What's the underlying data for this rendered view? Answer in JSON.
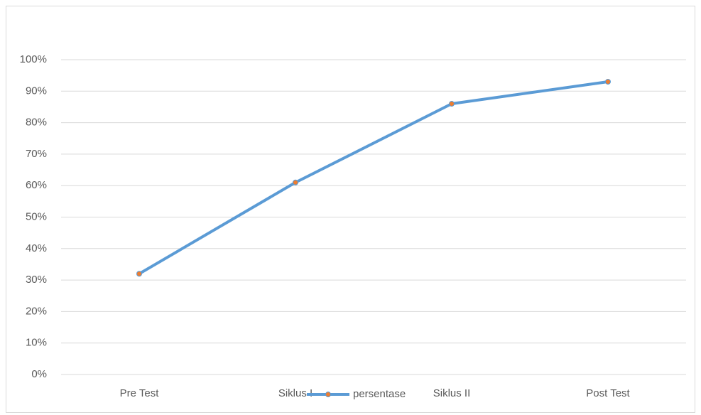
{
  "chart_data": {
    "type": "line",
    "categories": [
      "Pre Test",
      "Siklus I",
      "Siklus II",
      "Post Test"
    ],
    "series": [
      {
        "name": "persentase",
        "color": "#5b9bd5",
        "marker_color": "#ed7d31",
        "values": [
          32,
          61,
          86,
          93
        ]
      }
    ],
    "ylim": [
      0,
      100
    ],
    "yticks": [
      {
        "value": 0,
        "label": "0%"
      },
      {
        "value": 10,
        "label": "10%"
      },
      {
        "value": 20,
        "label": "20%"
      },
      {
        "value": 30,
        "label": "30%"
      },
      {
        "value": 40,
        "label": "40%"
      },
      {
        "value": 50,
        "label": "50%"
      },
      {
        "value": 60,
        "label": "60%"
      },
      {
        "value": 70,
        "label": "70%"
      },
      {
        "value": 80,
        "label": "80%"
      },
      {
        "value": 90,
        "label": "90%"
      },
      {
        "value": 100,
        "label": "100%"
      }
    ],
    "grid": true,
    "legend": "bottom"
  }
}
